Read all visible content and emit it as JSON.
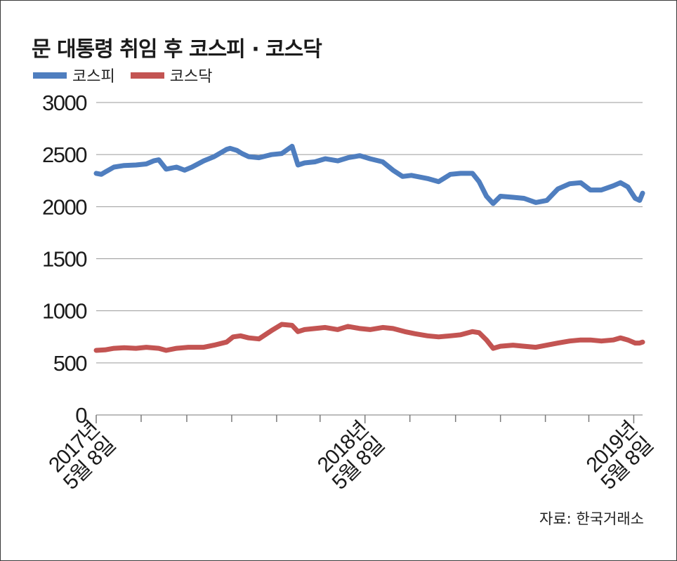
{
  "colors": {
    "kospi": "#4f7ebf",
    "kosdaq": "#c35452",
    "grid": "#9a9a9a",
    "axis": "#7a7a7a",
    "text": "#1b1b1b"
  },
  "title": "문 대통령 취임 후 코스피 · 코스닥",
  "source": "자료: 한국거래소",
  "chart_data": {
    "type": "line",
    "title": "문 대통령 취임 후 코스피 · 코스닥",
    "xlabel": "",
    "ylabel": "",
    "ylim": [
      0,
      3000
    ],
    "yticks": [
      0,
      500,
      1000,
      1500,
      2000,
      2500,
      3000
    ],
    "xlim": [
      "2017-05-08",
      "2019-05-20"
    ],
    "xtick_labels": [
      {
        "date": "2017-05-08",
        "line1": "2017년",
        "line2": "5월 8일"
      },
      {
        "date": "2018-05-08",
        "line1": "2018년",
        "line2": "5월 8일"
      },
      {
        "date": "2019-05-08",
        "line1": "2019년",
        "line2": "5월 8일"
      }
    ],
    "minor_ticks": [
      "2017-07-08",
      "2017-09-08",
      "2017-11-08",
      "2018-01-08",
      "2018-03-08",
      "2018-07-08",
      "2018-09-08",
      "2018-11-08",
      "2019-01-08",
      "2019-03-08"
    ],
    "grid": true,
    "legend": "top-left",
    "series": [
      {
        "name": "코스피",
        "color": "#4f7ebf",
        "x": [
          "2017-05-08",
          "2017-05-15",
          "2017-05-22",
          "2017-06-01",
          "2017-06-15",
          "2017-07-01",
          "2017-07-15",
          "2017-07-25",
          "2017-08-01",
          "2017-08-11",
          "2017-08-25",
          "2017-09-05",
          "2017-09-15",
          "2017-10-01",
          "2017-10-15",
          "2017-11-01",
          "2017-11-06",
          "2017-11-15",
          "2017-11-22",
          "2017-12-01",
          "2017-12-15",
          "2018-01-01",
          "2018-01-15",
          "2018-01-29",
          "2018-02-06",
          "2018-02-15",
          "2018-03-01",
          "2018-03-15",
          "2018-04-01",
          "2018-04-15",
          "2018-05-01",
          "2018-05-15",
          "2018-06-01",
          "2018-06-15",
          "2018-06-28",
          "2018-07-10",
          "2018-08-01",
          "2018-08-16",
          "2018-09-01",
          "2018-09-15",
          "2018-10-01",
          "2018-10-10",
          "2018-10-20",
          "2018-10-29",
          "2018-11-08",
          "2018-11-25",
          "2018-12-10",
          "2018-12-26",
          "2019-01-10",
          "2019-01-25",
          "2019-02-10",
          "2019-02-25",
          "2019-03-10",
          "2019-03-25",
          "2019-04-10",
          "2019-04-20",
          "2019-04-30",
          "2019-05-10",
          "2019-05-16",
          "2019-05-20"
        ],
        "values": [
          2320,
          2310,
          2340,
          2380,
          2395,
          2400,
          2410,
          2440,
          2450,
          2360,
          2380,
          2350,
          2380,
          2440,
          2480,
          2550,
          2560,
          2540,
          2510,
          2480,
          2470,
          2500,
          2510,
          2580,
          2400,
          2420,
          2430,
          2460,
          2440,
          2470,
          2490,
          2460,
          2430,
          2350,
          2290,
          2300,
          2270,
          2240,
          2310,
          2320,
          2320,
          2240,
          2100,
          2030,
          2100,
          2090,
          2080,
          2040,
          2060,
          2170,
          2220,
          2230,
          2160,
          2160,
          2200,
          2230,
          2190,
          2080,
          2060,
          2130
        ]
      },
      {
        "name": "코스닥",
        "color": "#c35452",
        "x": [
          "2017-05-08",
          "2017-05-20",
          "2017-06-01",
          "2017-06-15",
          "2017-07-01",
          "2017-07-15",
          "2017-08-01",
          "2017-08-11",
          "2017-08-25",
          "2017-09-10",
          "2017-10-01",
          "2017-10-15",
          "2017-11-01",
          "2017-11-10",
          "2017-11-20",
          "2017-12-01",
          "2017-12-15",
          "2018-01-01",
          "2018-01-15",
          "2018-01-29",
          "2018-02-06",
          "2018-02-15",
          "2018-03-01",
          "2018-03-15",
          "2018-04-01",
          "2018-04-15",
          "2018-05-01",
          "2018-05-15",
          "2018-06-01",
          "2018-06-15",
          "2018-07-01",
          "2018-07-15",
          "2018-08-01",
          "2018-08-16",
          "2018-09-01",
          "2018-09-15",
          "2018-10-01",
          "2018-10-10",
          "2018-10-20",
          "2018-10-29",
          "2018-11-08",
          "2018-11-25",
          "2018-12-10",
          "2018-12-26",
          "2019-01-10",
          "2019-01-25",
          "2019-02-10",
          "2019-02-25",
          "2019-03-10",
          "2019-03-25",
          "2019-04-10",
          "2019-04-20",
          "2019-04-30",
          "2019-05-10",
          "2019-05-16",
          "2019-05-20"
        ],
        "values": [
          620,
          625,
          640,
          645,
          640,
          650,
          640,
          620,
          640,
          650,
          650,
          670,
          700,
          750,
          760,
          740,
          730,
          810,
          870,
          860,
          800,
          820,
          830,
          840,
          820,
          850,
          830,
          820,
          840,
          830,
          800,
          780,
          760,
          750,
          760,
          770,
          800,
          790,
          720,
          640,
          660,
          670,
          660,
          650,
          670,
          690,
          710,
          720,
          720,
          710,
          720,
          740,
          720,
          690,
          690,
          700
        ]
      }
    ]
  }
}
